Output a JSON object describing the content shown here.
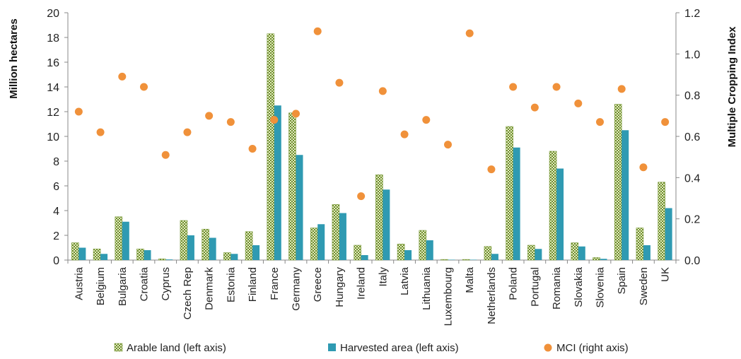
{
  "chart_data": {
    "type": "bar",
    "categories": [
      "Austria",
      "Belgium",
      "Bulgaria",
      "Croatia",
      "Cyprus",
      "Czech Rep",
      "Denmark",
      "Estonia",
      "Finland",
      "France",
      "Germany",
      "Greece",
      "Hungary",
      "Ireland",
      "Italy",
      "Latvia",
      "Lithuania",
      "Luxembourg",
      "Malta",
      "Netherlands",
      "Poland",
      "Portugal",
      "Romania",
      "Slovakia",
      "Slovenia",
      "Spain",
      "Sweden",
      "UK"
    ],
    "series": [
      {
        "name": "Arable land (left axis)",
        "axis": "left",
        "kind": "bar",
        "color": "#7a9a3a",
        "values": [
          1.4,
          0.9,
          3.5,
          0.9,
          0.1,
          3.2,
          2.5,
          0.6,
          2.3,
          18.3,
          11.9,
          2.6,
          4.5,
          1.2,
          6.9,
          1.3,
          2.4,
          0.05,
          0.05,
          1.1,
          10.8,
          1.2,
          8.8,
          1.4,
          0.2,
          12.6,
          2.6,
          6.3
        ]
      },
      {
        "name": "Harvested area (left axis)",
        "axis": "left",
        "kind": "bar",
        "color": "#2f9ab2",
        "values": [
          1.0,
          0.5,
          3.1,
          0.8,
          0.05,
          2.0,
          1.8,
          0.5,
          1.2,
          12.5,
          8.5,
          2.9,
          3.8,
          0.4,
          5.7,
          0.8,
          1.6,
          0.03,
          0.03,
          0.5,
          9.1,
          0.9,
          7.4,
          1.1,
          0.1,
          10.5,
          1.2,
          4.2
        ]
      },
      {
        "name": "MCI (right axis)",
        "axis": "right",
        "kind": "scatter",
        "color": "#f0913a",
        "values": [
          0.72,
          0.62,
          0.89,
          0.84,
          0.51,
          0.62,
          0.7,
          0.67,
          0.54,
          0.68,
          0.71,
          1.11,
          0.86,
          0.31,
          0.82,
          0.61,
          0.68,
          0.56,
          1.1,
          0.44,
          0.84,
          0.74,
          0.84,
          0.76,
          0.67,
          0.83,
          0.45,
          0.67
        ]
      }
    ],
    "ylabel": "Million hectares",
    "y2label": "Multiple Cropping Index",
    "ylim": [
      0,
      20
    ],
    "y2lim": [
      0,
      1.2
    ],
    "yticks": [
      "0",
      "2",
      "4",
      "6",
      "8",
      "10",
      "12",
      "14",
      "16",
      "18",
      "20"
    ],
    "y2ticks": [
      "0.0",
      "0.2",
      "0.4",
      "0.6",
      "0.8",
      "1.0",
      "1.2"
    ],
    "grid": false,
    "legend_position": "bottom"
  }
}
